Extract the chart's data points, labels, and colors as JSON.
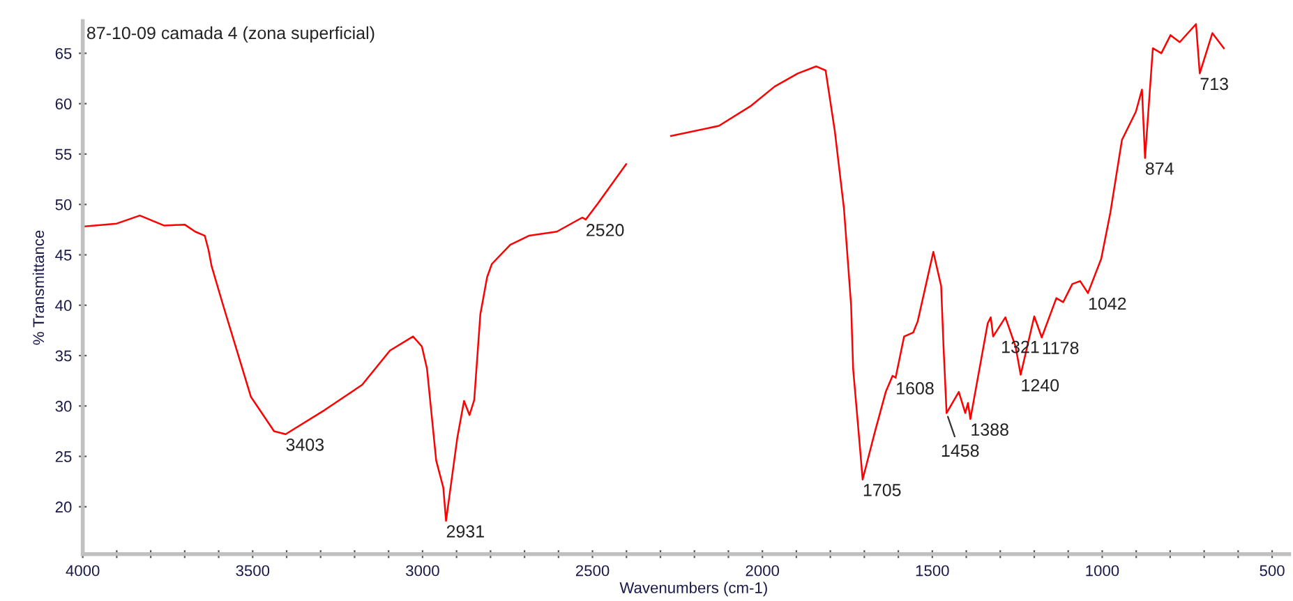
{
  "chart_data": {
    "type": "line",
    "title": "87-10-09 camada 4 (zona superficial)",
    "xlabel": "Wavenumbers (cm-1)",
    "ylabel": "% Transmittance",
    "x": [
      4000,
      3900,
      3832,
      3760,
      3700,
      3669,
      3641,
      3630,
      3621,
      3587,
      3505,
      3437,
      3403,
      3288,
      3178,
      3096,
      3028,
      3002,
      2987,
      2960,
      2939,
      2931,
      2898,
      2878,
      2862,
      2848,
      2830,
      2810,
      2796,
      2742,
      2687,
      2605,
      2530,
      2520,
      2484,
      2401,
      2330,
      2269,
      2128,
      2033,
      1964,
      1896,
      1842,
      1814,
      1787,
      1760,
      1739,
      1733,
      1712,
      1705,
      1670,
      1637,
      1617,
      1608,
      1583,
      1556,
      1543,
      1497,
      1474,
      1467,
      1458,
      1422,
      1403,
      1395,
      1388,
      1337,
      1328,
      1321,
      1285,
      1255,
      1240,
      1200,
      1178,
      1135,
      1115,
      1088,
      1065,
      1042,
      1003,
      976,
      942,
      901,
      883,
      874,
      851,
      826,
      799,
      772,
      724,
      713,
      676,
      642
    ],
    "series": [
      {
        "color": "#ff0000",
        "values": [
          47.8,
          48.1,
          48.9,
          47.9,
          48.0,
          47.3,
          46.9,
          45.5,
          43.9,
          40.0,
          30.9,
          27.5,
          27.2,
          29.6,
          32.1,
          35.5,
          36.9,
          35.9,
          33.7,
          24.6,
          21.9,
          18.6,
          26.8,
          30.5,
          29.1,
          30.6,
          39.1,
          42.8,
          44.1,
          46.0,
          46.9,
          47.3,
          48.7,
          48.5,
          50.1,
          54.0,
          null,
          56.8,
          57.8,
          59.8,
          61.7,
          63.0,
          63.7,
          63.3,
          57.3,
          49.6,
          40.0,
          33.7,
          25.5,
          22.7,
          27.3,
          31.4,
          33.0,
          32.8,
          36.9,
          37.3,
          38.4,
          45.3,
          41.9,
          35.9,
          29.3,
          31.4,
          29.3,
          30.3,
          28.7,
          38.2,
          38.8,
          36.9,
          38.8,
          35.9,
          33.1,
          38.9,
          36.8,
          40.7,
          40.3,
          42.1,
          42.4,
          41.2,
          44.6,
          49.2,
          56.4,
          59.2,
          61.4,
          54.6,
          65.5,
          65.0,
          66.8,
          66.1,
          67.9,
          63.0,
          67.0,
          65.5
        ]
      }
    ],
    "annotations": [
      {
        "text": "3403",
        "x": 3403,
        "y": 27.2
      },
      {
        "text": "2931",
        "x": 2931,
        "y": 18.6
      },
      {
        "text": "2520",
        "x": 2520,
        "y": 48.5
      },
      {
        "text": "1705",
        "x": 1705,
        "y": 22.7
      },
      {
        "text": "1608",
        "x": 1608,
        "y": 32.8
      },
      {
        "text": "1458",
        "x": 1458,
        "y": 29.3
      },
      {
        "text": "1388",
        "x": 1388,
        "y": 28.7
      },
      {
        "text": "1321",
        "x": 1321,
        "y": 36.9
      },
      {
        "text": "1240",
        "x": 1240,
        "y": 33.1
      },
      {
        "text": "1178",
        "x": 1178,
        "y": 36.8
      },
      {
        "text": "1042",
        "x": 1042,
        "y": 41.2
      },
      {
        "text": "874",
        "x": 874,
        "y": 54.6
      },
      {
        "text": "713",
        "x": 713,
        "y": 63.0
      }
    ],
    "xlim": [
      4000,
      450
    ],
    "ylim": [
      15.3,
      68.2
    ],
    "xticks": [
      4000,
      {
        "value": 3900,
        "label": null
      },
      {
        "value": 3800,
        "label": null
      },
      {
        "value": 3700,
        "label": null
      },
      {
        "value": 3600,
        "label": null
      },
      3500,
      {
        "value": 3400,
        "label": null
      },
      {
        "value": 3300,
        "label": null
      },
      {
        "value": 3200,
        "label": null
      },
      {
        "value": 3100,
        "label": null
      },
      3000,
      {
        "value": 2900,
        "label": null
      },
      {
        "value": 2800,
        "label": null
      },
      {
        "value": 2700,
        "label": null
      },
      {
        "value": 2600,
        "label": null
      },
      2500,
      {
        "value": 2400,
        "label": null
      },
      {
        "value": 2300,
        "label": null
      },
      {
        "value": 2200,
        "label": null
      },
      {
        "value": 2100,
        "label": null
      },
      2000,
      {
        "value": 1900,
        "label": null
      },
      {
        "value": 1800,
        "label": null
      },
      {
        "value": 1700,
        "label": null
      },
      {
        "value": 1600,
        "label": null
      },
      1500,
      {
        "value": 1400,
        "label": null
      },
      {
        "value": 1300,
        "label": null
      },
      {
        "value": 1200,
        "label": null
      },
      {
        "value": 1100,
        "label": null
      },
      1000,
      {
        "value": 900,
        "label": null
      },
      {
        "value": 800,
        "label": null
      },
      {
        "value": 700,
        "label": null
      },
      {
        "value": 600,
        "label": null
      },
      500
    ],
    "yticks": [
      20,
      25,
      30,
      35,
      40,
      45,
      50,
      55,
      60,
      65
    ],
    "grid": false,
    "marker": "none",
    "line_style": "solid"
  }
}
